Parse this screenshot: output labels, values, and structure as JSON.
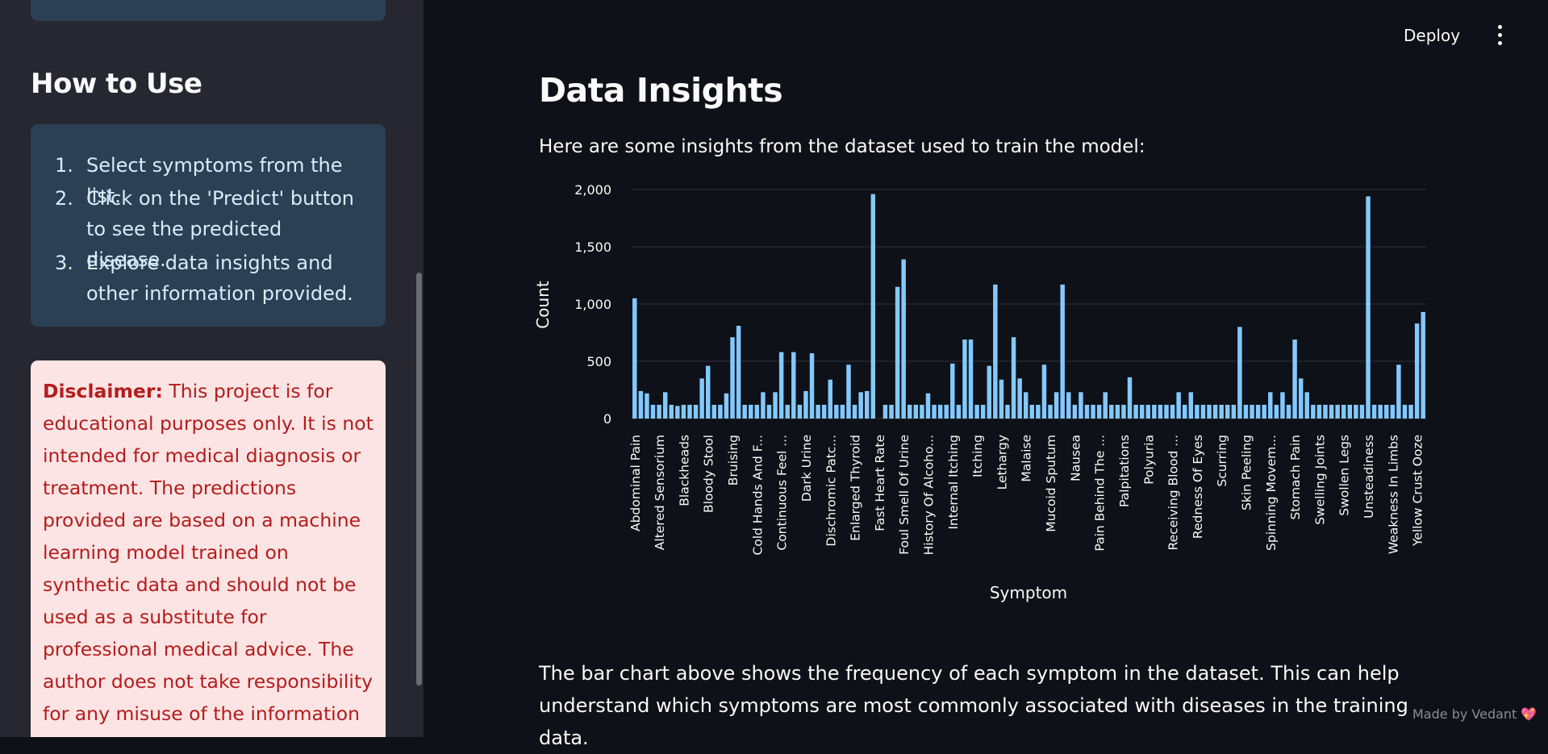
{
  "header": {
    "deploy_label": "Deploy",
    "menu_icon": "kebab-menu-icon"
  },
  "sidebar": {
    "heading": "How to Use",
    "steps": [
      {
        "num": "1.",
        "text": "Select symptoms from the list."
      },
      {
        "num": "2.",
        "text": "Click on the 'Predict' button to see the predicted disease."
      },
      {
        "num": "3.",
        "text": "Explore data insights and other information provided."
      }
    ],
    "disclaimer": {
      "label": "Disclaimer:",
      "text": " This project is for educational purposes only. It is not intended for medical diagnosis or treatment. The predictions provided are based on a machine learning model trained on synthetic data and should not be used as a substitute for professional medical advice. The author does not take responsibility for any misuse of the information provided."
    },
    "colors": {
      "card": "#2b3f55",
      "disclaimer_bg": "#fde4e4",
      "disclaimer_text": "#b41c1c"
    }
  },
  "main": {
    "title": "Data Insights",
    "intro": "Here are some insights from the dataset used to train the model:",
    "caption": "The bar chart above shows the frequency of each symptom in the dataset. This can help understand which symptoms are most commonly associated with diseases in the training data."
  },
  "footer": {
    "made_by": "Made by Vedant",
    "icon": "heart-icon"
  },
  "chart_data": {
    "type": "bar",
    "xlabel": "Symptom",
    "ylabel": "Count",
    "ylim": [
      0,
      2000
    ],
    "yticks": [
      0,
      500,
      1000,
      1500,
      2000
    ],
    "ytick_labels": [
      "0",
      "500",
      "1,000",
      "1,500",
      "2,000"
    ],
    "grid": true,
    "bar_color": "#83c9ff",
    "visible_tick_labels": [
      "Abdominal Pain",
      "Altered Sensorium",
      "Blackheads",
      "Bloody Stool",
      "Bruising",
      "Cold Hands And F...",
      "Continuous Feel ...",
      "Dark Urine",
      "Dischromic Patc...",
      "Enlarged Thyroid",
      "Fast Heart Rate",
      "Foul Smell Of Urine",
      "History Of Alcoho...",
      "Internal Itching",
      "Itching",
      "Lethargy",
      "Malaise",
      "Mucoid Sputum",
      "Nausea",
      "Pain Behind The ...",
      "Palpitations",
      "Polyuria",
      "Receiving Blood ...",
      "Redness Of Eyes",
      "Scurring",
      "Skin Peeling",
      "Spinning Movem...",
      "Stomach Pain",
      "Swelling Joints",
      "Swollen Legs",
      "Unsteadiness",
      "Weakness In Limbs",
      "Yellow Crust Ooze"
    ],
    "values": [
      1050,
      240,
      220,
      120,
      120,
      230,
      120,
      110,
      120,
      120,
      120,
      350,
      460,
      120,
      120,
      220,
      710,
      810,
      120,
      120,
      120,
      230,
      120,
      230,
      580,
      120,
      580,
      120,
      240,
      570,
      120,
      120,
      340,
      120,
      120,
      470,
      120,
      230,
      240,
      1960,
      0,
      120,
      120,
      1150,
      1390,
      120,
      120,
      120,
      220,
      120,
      120,
      120,
      480,
      120,
      690,
      690,
      120,
      120,
      460,
      1170,
      340,
      120,
      710,
      350,
      230,
      120,
      120,
      470,
      120,
      230,
      1170,
      230,
      120,
      230,
      120,
      120,
      120,
      230,
      120,
      120,
      120,
      360,
      120,
      120,
      120,
      120,
      120,
      120,
      120,
      230,
      120,
      230,
      120,
      120,
      120,
      120,
      120,
      120,
      120,
      800,
      120,
      120,
      120,
      120,
      230,
      120,
      230,
      120,
      690,
      350,
      230,
      120,
      120,
      120,
      120,
      120,
      120,
      120,
      120,
      120,
      1940,
      120,
      120,
      120,
      120,
      470,
      120,
      120,
      830,
      930
    ]
  }
}
